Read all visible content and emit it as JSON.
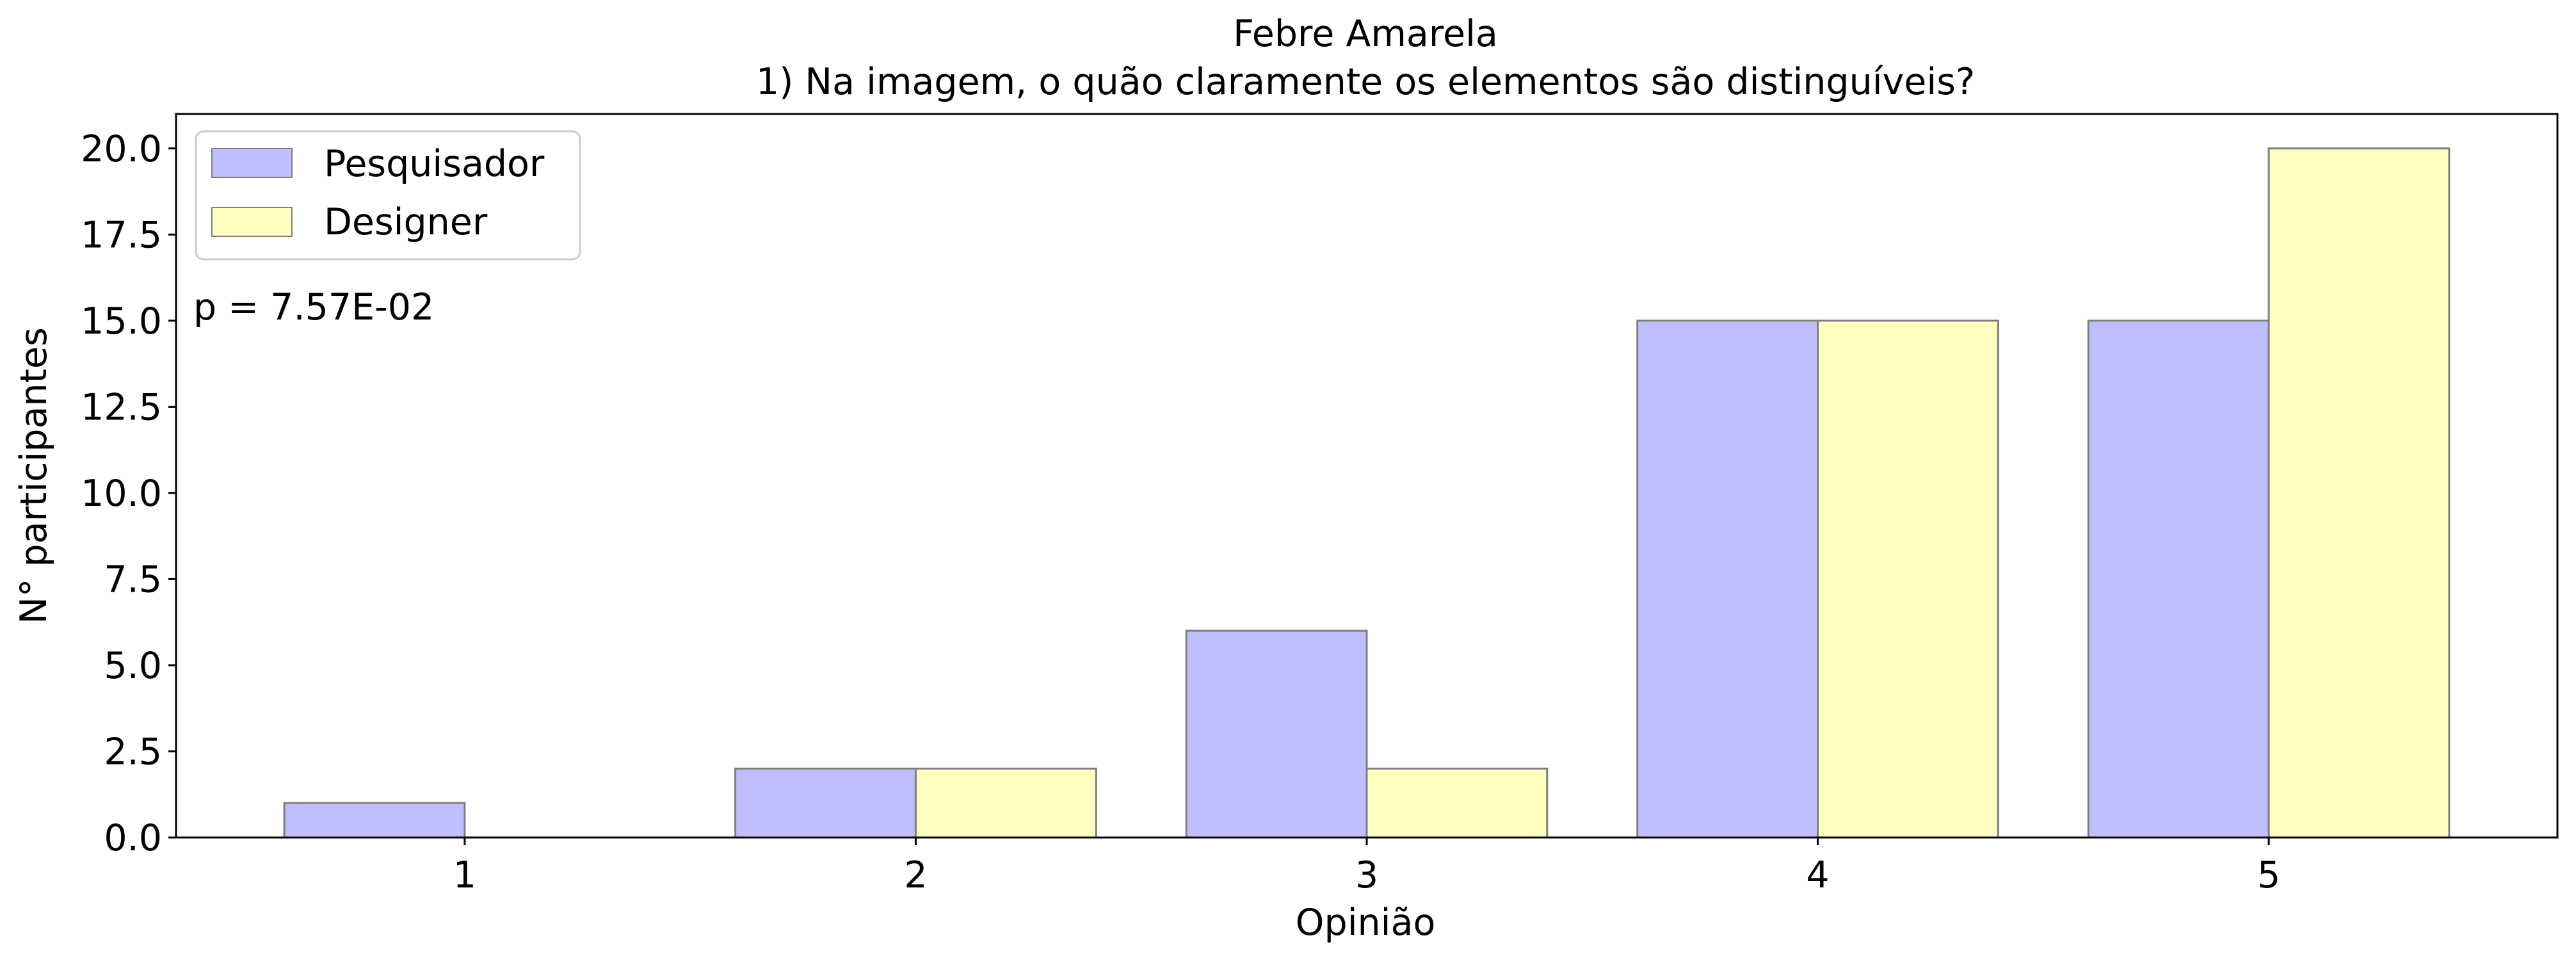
{
  "chart_data": {
    "type": "bar",
    "title": "Febre Amarela",
    "subtitle": "1) Na imagem, o quão claramente os elementos são distinguíveis?",
    "xlabel": "Opinião",
    "ylabel": "N° participantes",
    "categories": [
      "1",
      "2",
      "3",
      "4",
      "5"
    ],
    "series": [
      {
        "name": "Pesquisador",
        "values": [
          1,
          2,
          6,
          15,
          15
        ],
        "color": "#bfbfff"
      },
      {
        "name": "Designer",
        "values": [
          0,
          2,
          2,
          15,
          20
        ],
        "color": "#ffffbf"
      }
    ],
    "ylim": [
      0,
      21
    ],
    "yticks": [
      "0.0",
      "2.5",
      "5.0",
      "7.5",
      "10.0",
      "12.5",
      "15.0",
      "17.5",
      "20.0"
    ],
    "annotation": "p = 7.57E-02",
    "legend_position": "top-left",
    "grid": false,
    "bar_edge_color": "#7f7f7f"
  }
}
